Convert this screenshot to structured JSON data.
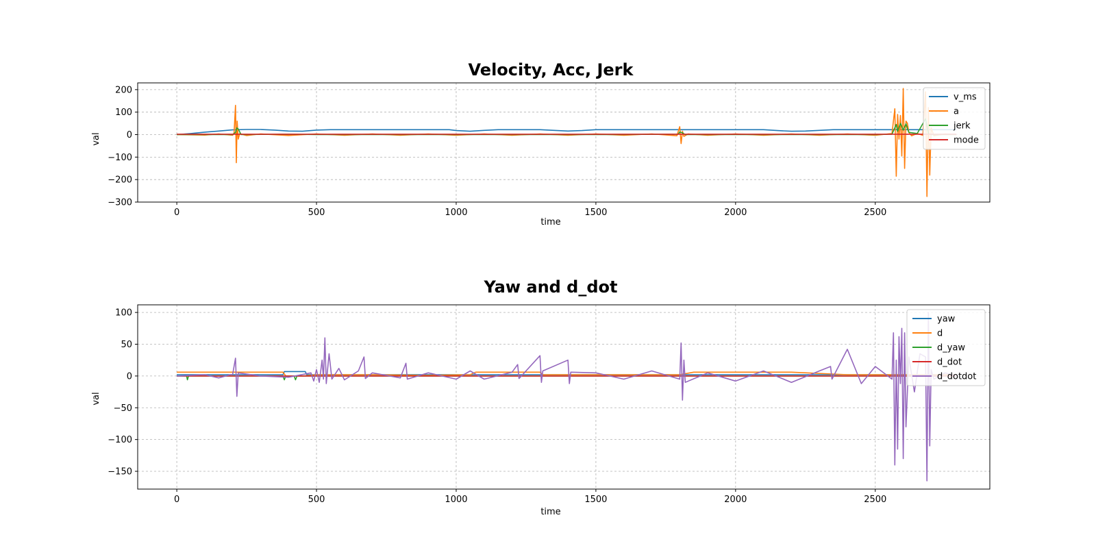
{
  "figure": {
    "background": "#ffffff"
  },
  "chart_data": [
    {
      "type": "line",
      "title": "Velocity, Acc, Jerk",
      "xlabel": "time",
      "ylabel": "val",
      "xlim": [
        -140,
        2910
      ],
      "ylim": [
        -300,
        230
      ],
      "xticks": [
        0,
        500,
        1000,
        1500,
        2000,
        2500
      ],
      "yticks": [
        -300,
        -200,
        -100,
        0,
        100,
        200
      ],
      "xtick_labels": [
        "0",
        "500",
        "1000",
        "1500",
        "2000",
        "2500"
      ],
      "ytick_labels": [
        "−300",
        "−200",
        "−100",
        "0",
        "100",
        "200"
      ],
      "grid": true,
      "legend": "top-right",
      "series": [
        {
          "name": "v_ms",
          "color": "#1f77b4",
          "x": [
            0,
            50,
            100,
            150,
            200,
            250,
            300,
            350,
            400,
            450,
            500,
            550,
            600,
            700,
            800,
            900,
            975,
            1000,
            1050,
            1100,
            1150,
            1200,
            1300,
            1350,
            1400,
            1450,
            1500,
            1600,
            1700,
            1800,
            1900,
            2000,
            2100,
            2150,
            2200,
            2250,
            2300,
            2350,
            2400,
            2500,
            2600,
            2700,
            2790
          ],
          "y": [
            0,
            5,
            11,
            16,
            21,
            23,
            23,
            20,
            16,
            15,
            20,
            22,
            22,
            22,
            22,
            22,
            22,
            18,
            15,
            19,
            22,
            22,
            22,
            19,
            16,
            18,
            22,
            22,
            22,
            22,
            22,
            22,
            22,
            18,
            15,
            16,
            19,
            22,
            22,
            22,
            22,
            22,
            22
          ]
        },
        {
          "name": "a",
          "color": "#ff7f0e",
          "x": [
            0,
            100,
            150,
            200,
            205,
            210,
            213,
            216,
            220,
            225,
            250,
            300,
            400,
            500,
            600,
            700,
            800,
            900,
            1000,
            1100,
            1200,
            1300,
            1400,
            1500,
            1600,
            1700,
            1790,
            1800,
            1805,
            1810,
            1815,
            1830,
            1900,
            2000,
            2100,
            2200,
            2300,
            2400,
            2500,
            2560,
            2570,
            2575,
            2580,
            2585,
            2590,
            2595,
            2600,
            2605,
            2610,
            2615,
            2620,
            2630,
            2650,
            2670,
            2680,
            2685,
            2690,
            2695,
            2700,
            2710,
            2750,
            2790
          ],
          "y": [
            0,
            -2,
            3,
            -3,
            8,
            130,
            -125,
            60,
            -20,
            4,
            -4,
            3,
            -4,
            3,
            -3,
            3,
            -3,
            3,
            -3,
            3,
            -3,
            3,
            -3,
            3,
            -3,
            3,
            -5,
            35,
            -40,
            15,
            -8,
            3,
            -3,
            3,
            -3,
            3,
            -3,
            3,
            -3,
            5,
            115,
            -185,
            90,
            -20,
            85,
            -95,
            205,
            -150,
            60,
            50,
            10,
            -5,
            5,
            -3,
            190,
            -275,
            120,
            -180,
            30,
            -5,
            3,
            0
          ]
        },
        {
          "name": "jerk",
          "color": "#2ca02c",
          "x": [
            0,
            200,
            210,
            215,
            220,
            230,
            400,
            500,
            1000,
            1500,
            1795,
            1800,
            1810,
            1820,
            2000,
            2500,
            2560,
            2575,
            2580,
            2590,
            2600,
            2610,
            2620,
            2650,
            2680,
            2690,
            2695,
            2700,
            2790
          ],
          "y": [
            0,
            0,
            10,
            30,
            25,
            0,
            2,
            0,
            0,
            0,
            2,
            12,
            8,
            0,
            0,
            0,
            2,
            45,
            15,
            50,
            20,
            48,
            10,
            5,
            70,
            5,
            2,
            0,
            0
          ]
        },
        {
          "name": "mode",
          "color": "#d62728",
          "x": [
            0,
            2790
          ],
          "y": [
            2,
            2
          ]
        }
      ]
    },
    {
      "type": "line",
      "title": "Yaw and d_dot",
      "xlabel": "time",
      "ylabel": "val",
      "xlim": [
        -140,
        2910
      ],
      "ylim": [
        -178,
        112
      ],
      "xticks": [
        0,
        500,
        1000,
        1500,
        2000,
        2500
      ],
      "yticks": [
        -150,
        -100,
        -50,
        0,
        50,
        100
      ],
      "xtick_labels": [
        "0",
        "500",
        "1000",
        "1500",
        "2000",
        "2500"
      ],
      "ytick_labels": [
        "−150",
        "−100",
        "−50",
        "0",
        "50",
        "100"
      ],
      "grid": true,
      "legend": "top-right",
      "series": [
        {
          "name": "yaw",
          "color": "#1f77b4",
          "x": [
            0,
            380,
            385,
            460,
            465,
            800,
            1000,
            1500,
            2000,
            2500,
            2790
          ],
          "y": [
            2,
            2,
            7,
            7,
            2,
            2,
            2,
            2,
            2,
            2,
            2
          ]
        },
        {
          "name": "d",
          "color": "#ff7f0e",
          "x": [
            0,
            380,
            390,
            450,
            500,
            700,
            900,
            1050,
            1070,
            1300,
            1310,
            1500,
            1800,
            1850,
            1900,
            2000,
            2200,
            2400,
            2600,
            2790
          ],
          "y": [
            6,
            6,
            0,
            0,
            2,
            2,
            1,
            2,
            6,
            6,
            2,
            2,
            2,
            6,
            6,
            6,
            6,
            2,
            2,
            2
          ]
        },
        {
          "name": "d_yaw",
          "color": "#2ca02c",
          "x": [
            0,
            35,
            38,
            42,
            380,
            385,
            390,
            420,
            425,
            430,
            800,
            1800,
            2790
          ],
          "y": [
            0,
            0,
            -6,
            0,
            0,
            -6,
            0,
            0,
            -6,
            0,
            0,
            0,
            0
          ]
        },
        {
          "name": "d_dot",
          "color": "#d62728",
          "x": [
            0,
            2790
          ],
          "y": [
            0,
            0
          ]
        },
        {
          "name": "d_dotdot",
          "color": "#9467bd",
          "x": [
            0,
            100,
            150,
            200,
            210,
            215,
            220,
            300,
            400,
            480,
            490,
            500,
            510,
            520,
            525,
            530,
            535,
            545,
            555,
            580,
            600,
            650,
            670,
            675,
            700,
            800,
            820,
            825,
            900,
            1000,
            1050,
            1100,
            1200,
            1220,
            1225,
            1300,
            1305,
            1310,
            1400,
            1405,
            1410,
            1500,
            1600,
            1700,
            1800,
            1805,
            1810,
            1815,
            1820,
            1900,
            2000,
            2100,
            2200,
            2300,
            2340,
            2345,
            2400,
            2450,
            2500,
            2560,
            2565,
            2570,
            2575,
            2580,
            2585,
            2590,
            2595,
            2600,
            2605,
            2610,
            2620,
            2640,
            2660,
            2680,
            2685,
            2690,
            2695,
            2700,
            2710,
            2750,
            2790
          ],
          "y": [
            0,
            2,
            -3,
            3,
            28,
            -32,
            5,
            0,
            -2,
            5,
            -8,
            10,
            -10,
            25,
            -5,
            60,
            -12,
            35,
            -5,
            12,
            -6,
            8,
            30,
            -4,
            5,
            -3,
            20,
            -5,
            5,
            -5,
            8,
            -5,
            6,
            18,
            -4,
            32,
            -10,
            8,
            25,
            -12,
            6,
            5,
            -5,
            8,
            -5,
            52,
            -38,
            25,
            -10,
            5,
            -8,
            8,
            -10,
            8,
            15,
            -5,
            42,
            -12,
            15,
            -5,
            68,
            -140,
            25,
            -115,
            62,
            -12,
            75,
            -130,
            68,
            -80,
            30,
            -25,
            35,
            30,
            -165,
            100,
            -110,
            10,
            -5,
            5,
            0
          ]
        }
      ]
    }
  ]
}
